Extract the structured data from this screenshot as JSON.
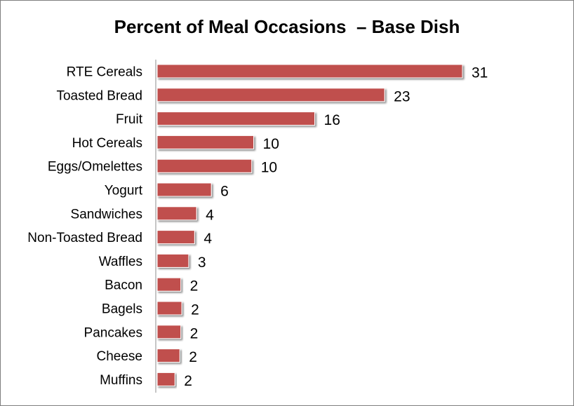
{
  "chart_data": {
    "type": "bar",
    "orientation": "horizontal",
    "title": "Percent of Meal Occasions  – Base Dish",
    "categories": [
      "RTE Cereals",
      "Toasted Bread",
      "Fruit",
      "Hot Cereals",
      "Eggs/Omelettes",
      "Yogurt",
      "Sandwiches",
      "Non-Toasted Bread",
      "Waffles",
      "Bacon",
      "Bagels",
      "Pancakes",
      "Cheese",
      "Muffins"
    ],
    "values": [
      31,
      23,
      16,
      10,
      10,
      6,
      4,
      4,
      3,
      2,
      2,
      2,
      2,
      2
    ],
    "value_labels": [
      "31",
      "23",
      "16",
      "10",
      "10",
      "6",
      "4",
      "4",
      "3",
      "2",
      "2",
      "2",
      "2",
      "2"
    ],
    "bar_values_precise": [
      31.0,
      23.1,
      16.0,
      9.8,
      9.6,
      5.5,
      4.0,
      3.8,
      3.2,
      2.4,
      2.5,
      2.4,
      2.3,
      1.8
    ],
    "xlim": [
      0,
      31
    ],
    "grid": false,
    "legend": "none",
    "bar_color": "#c0504d"
  }
}
